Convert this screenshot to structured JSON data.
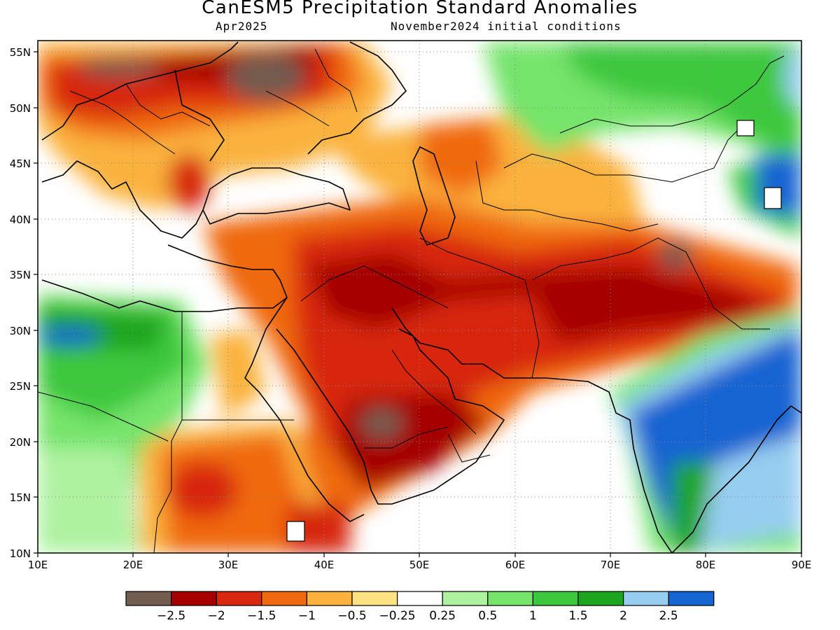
{
  "title": "CanESM5 Precipitation Standard Anomalies",
  "subtitle_left": "Apr2025",
  "subtitle_right": "November2024 initial conditions",
  "map": {
    "lon_range": [
      10,
      90
    ],
    "lat_range": [
      10,
      56
    ],
    "lon_ticks": [
      "10E",
      "20E",
      "30E",
      "40E",
      "50E",
      "60E",
      "70E",
      "80E",
      "90E"
    ],
    "lat_ticks": [
      "10N",
      "15N",
      "20N",
      "25N",
      "30N",
      "35N",
      "40N",
      "45N",
      "50N",
      "55N"
    ],
    "grid": "dotted"
  },
  "colorbar": {
    "colors": [
      "#735c50",
      "#a50000",
      "#d7280f",
      "#f0690f",
      "#fab23c",
      "#fde282",
      "#ffffff",
      "#aef2a0",
      "#74e46a",
      "#3cc83c",
      "#1ea51e",
      "#96cdf0",
      "#1464d2"
    ],
    "labels": [
      "−2.5",
      "−2",
      "−1.5",
      "−1",
      "−0.5",
      "−0.25",
      "0.25",
      "0.5",
      "1",
      "1.5",
      "2",
      "2.5"
    ]
  }
}
